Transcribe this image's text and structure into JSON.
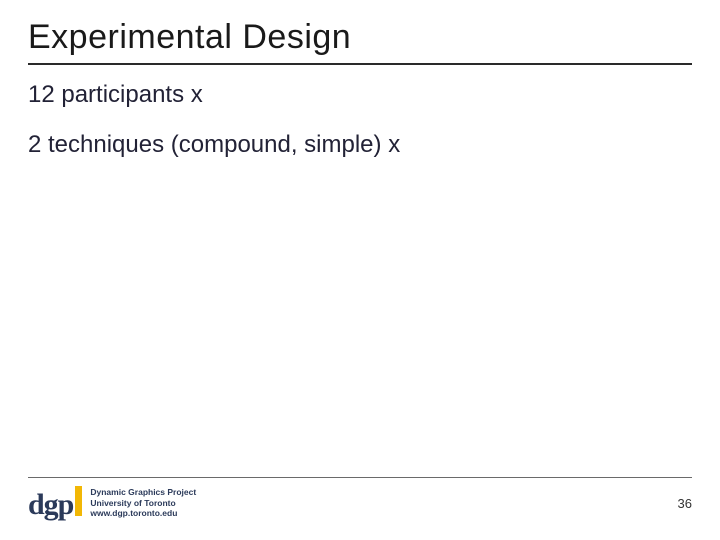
{
  "slide": {
    "title": "Experimental Design",
    "lines": [
      "12 participants x",
      "2 techniques (compound, simple) x"
    ],
    "title_color": "#1a1a1a",
    "body_color": "#222236",
    "rule_color": "#2a2a2a",
    "background": "#ffffff"
  },
  "footer": {
    "logo_text": "dgp",
    "logo_color": "#2b3a5a",
    "accent_color": "#f2b705",
    "meta_line1": "Dynamic Graphics Project",
    "meta_line2": "University of Toronto",
    "meta_line3": "www.dgp.toronto.edu",
    "page_number": "36",
    "rule_color": "#6a6a6a"
  }
}
